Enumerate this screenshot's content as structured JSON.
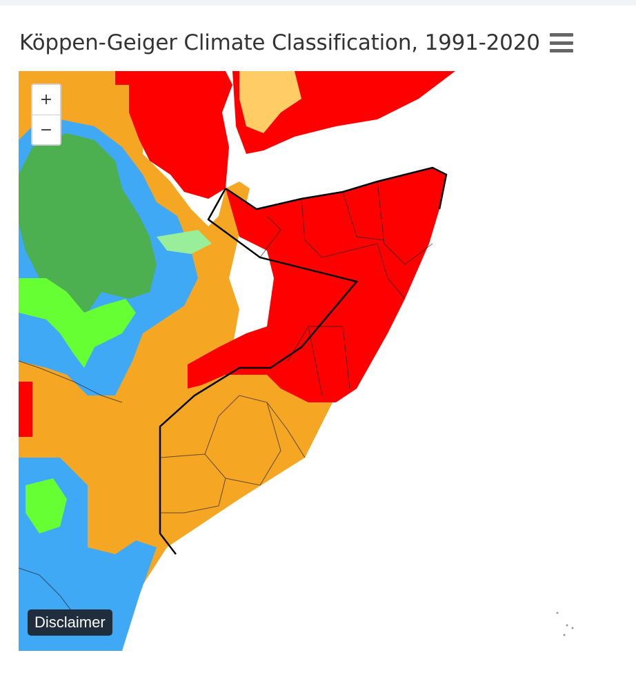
{
  "chart": {
    "title": "Köppen-Geiger Climate Classification, 1991-2020",
    "menu_icon": "hamburger-menu-icon"
  },
  "map": {
    "zoom_in_label": "+",
    "zoom_out_label": "−",
    "disclaimer_label": "Disclaimer"
  },
  "colors": {
    "hot_desert_BWh": "#ff0000",
    "hot_steppe_BSh": "#f5a623",
    "cold_steppe_BSk": "#ffcc66",
    "tropical_savanna_Aw": "#3fa9f5",
    "highland_Cwb": "#4caf50",
    "highland_Cwa": "#66ff33",
    "highland_Cfb": "#99ee99",
    "sea": "#ffffff",
    "borders": "#000000"
  }
}
